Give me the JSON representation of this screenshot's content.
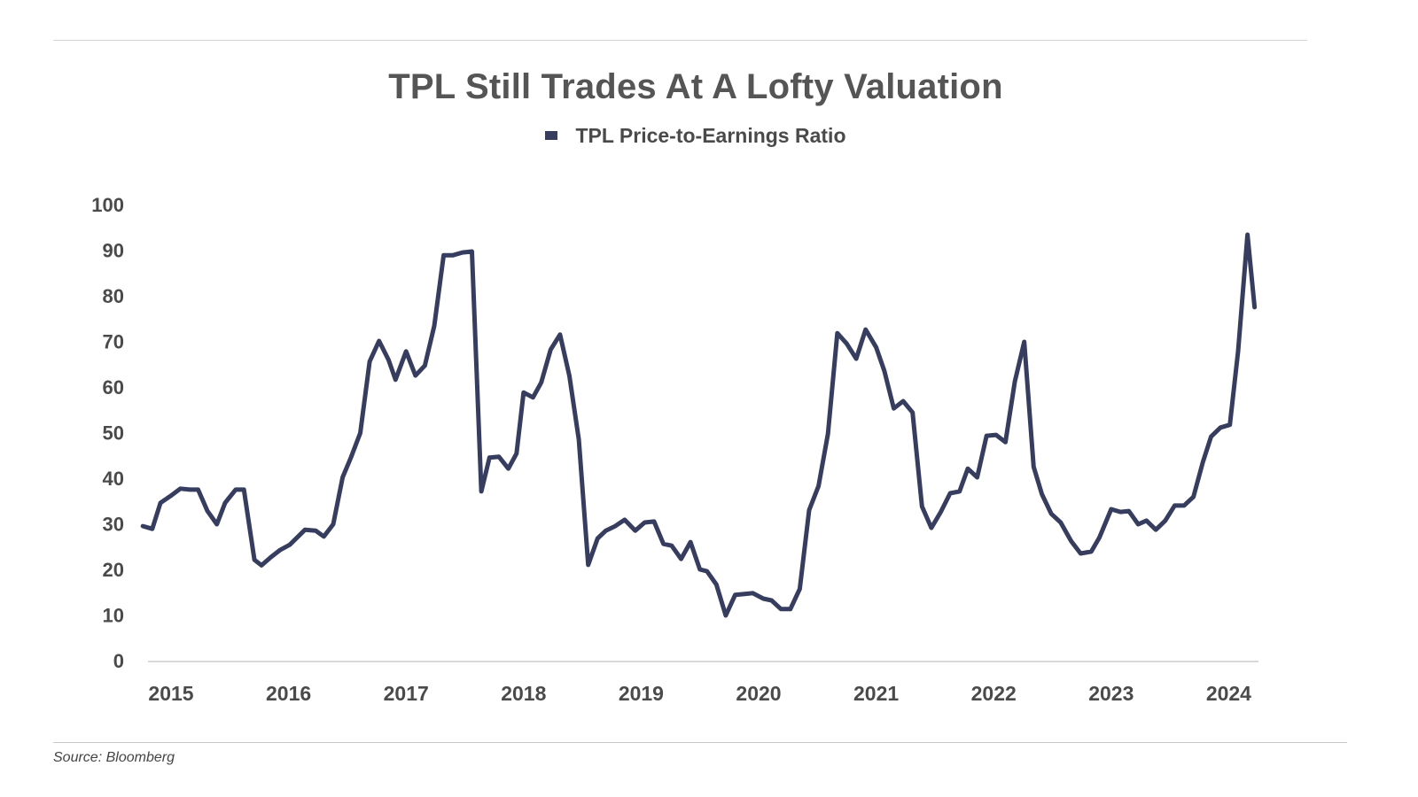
{
  "chart_data": {
    "type": "line",
    "title": "TPL Still Trades At A Lofty Valuation",
    "xlabel": "",
    "ylabel": "",
    "legend": {
      "position": "top-center",
      "entries": [
        "TPL Price-to-Earnings Ratio"
      ]
    },
    "source": "Source: Bloomberg",
    "ylim": [
      0,
      100
    ],
    "yticks": [
      0,
      10,
      20,
      30,
      40,
      50,
      60,
      70,
      80,
      90,
      100
    ],
    "xlim": [
      2014.75,
      2024.3
    ],
    "xticks": [
      2015,
      2016,
      2017,
      2018,
      2019,
      2020,
      2021,
      2022,
      2023,
      2024
    ],
    "xtick_labels": [
      "2015",
      "2016",
      "2017",
      "2018",
      "2019",
      "2020",
      "2021",
      "2022",
      "2023",
      "2024"
    ],
    "grid": false,
    "series": [
      {
        "name": "TPL Price-to-Earnings Ratio",
        "color": "#363d5e",
        "x": [
          2014.76,
          2014.84,
          2014.91,
          2014.99,
          2015.08,
          2015.16,
          2015.23,
          2015.31,
          2015.39,
          2015.46,
          2015.55,
          2015.62,
          2015.71,
          2015.77,
          2015.85,
          2015.93,
          2016.01,
          2016.14,
          2016.23,
          2016.3,
          2016.38,
          2016.46,
          2016.53,
          2016.61,
          2016.69,
          2016.77,
          2016.85,
          2016.91,
          2017.0,
          2017.08,
          2017.16,
          2017.24,
          2017.32,
          2017.4,
          2017.48,
          2017.56,
          2017.64,
          2017.71,
          2017.79,
          2017.87,
          2017.94,
          2018.0,
          2018.08,
          2018.15,
          2018.23,
          2018.31,
          2018.39,
          2018.47,
          2018.55,
          2018.63,
          2018.7,
          2018.78,
          2018.86,
          2018.95,
          2019.03,
          2019.11,
          2019.19,
          2019.26,
          2019.34,
          2019.42,
          2019.5,
          2019.56,
          2019.64,
          2019.72,
          2019.8,
          2019.88,
          2019.95,
          2020.04,
          2020.11,
          2020.19,
          2020.27,
          2020.35,
          2020.43,
          2020.51,
          2020.59,
          2020.67,
          2020.75,
          2020.83,
          2020.91,
          2021.0,
          2021.07,
          2021.15,
          2021.23,
          2021.31,
          2021.39,
          2021.47,
          2021.55,
          2021.63,
          2021.71,
          2021.78,
          2021.86,
          2021.94,
          2022.02,
          2022.1,
          2022.18,
          2022.26,
          2022.34,
          2022.41,
          2022.49,
          2022.57,
          2022.66,
          2022.74,
          2022.83,
          2022.9,
          2023.0,
          2023.08,
          2023.15,
          2023.23,
          2023.3,
          2023.38,
          2023.46,
          2023.54,
          2023.62,
          2023.7,
          2023.78,
          2023.85,
          2023.93,
          2024.01,
          2024.08,
          2024.16,
          2024.22
        ],
        "values": [
          29.5,
          28.9,
          34.6,
          36.0,
          37.7,
          37.5,
          37.5,
          32.8,
          29.9,
          34.6,
          37.5,
          37.5,
          22.1,
          20.9,
          22.7,
          24.3,
          25.4,
          28.7,
          28.5,
          27.2,
          29.9,
          40.2,
          44.5,
          49.9,
          65.6,
          70.1,
          66.0,
          61.6,
          67.8,
          62.5,
          64.7,
          73.4,
          88.9,
          88.9,
          89.5,
          89.7,
          37.1,
          44.5,
          44.7,
          42.1,
          45.4,
          58.8,
          57.7,
          61.0,
          68.2,
          71.5,
          62.4,
          48.5,
          21.0,
          26.8,
          28.5,
          29.5,
          30.9,
          28.5,
          30.3,
          30.5,
          25.6,
          25.2,
          22.3,
          26.0,
          20.0,
          19.6,
          16.7,
          9.9,
          14.4,
          14.6,
          14.8,
          13.6,
          13.2,
          11.3,
          11.3,
          15.7,
          33.0,
          38.3,
          49.7,
          71.8,
          69.5,
          66.2,
          72.6,
          68.7,
          63.5,
          55.3,
          56.9,
          54.4,
          33.8,
          29.1,
          32.6,
          36.7,
          37.1,
          42.1,
          40.2,
          49.3,
          49.5,
          47.9,
          61.2,
          69.9,
          42.5,
          36.5,
          32.2,
          30.3,
          26.2,
          23.5,
          23.9,
          27.0,
          33.2,
          32.6,
          32.8,
          29.9,
          30.7,
          28.7,
          30.7,
          34.0,
          34.0,
          35.9,
          43.5,
          49.1,
          51.1,
          51.7,
          67.8,
          93.4,
          77.5
        ]
      }
    ]
  }
}
